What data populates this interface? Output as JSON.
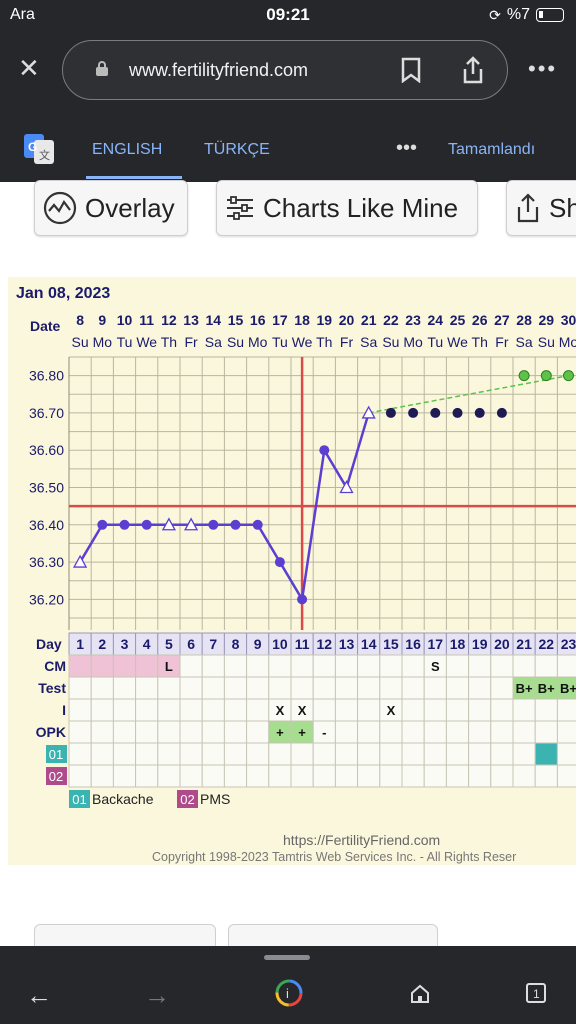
{
  "status": {
    "carrier": "Ara",
    "time": "09:21",
    "battery": "%7"
  },
  "browser": {
    "url": "www.fertilityfriend.com",
    "close_icon": "close-icon",
    "menu_icon": "more-icon"
  },
  "translate": {
    "lang_en": "ENGLISH",
    "lang_tr": "TÜRKÇE",
    "done": "Tamamlandı"
  },
  "buttons": {
    "overlay": "Overlay",
    "charts_like_mine": "Charts Like Mine",
    "share": "Sh"
  },
  "chart": {
    "start_date": "Jan 08, 2023",
    "row_label_date": "Date",
    "row_label_day": "Day",
    "dates": [
      "8",
      "9",
      "10",
      "11",
      "12",
      "13",
      "14",
      "15",
      "16",
      "17",
      "18",
      "19",
      "20",
      "21",
      "22",
      "23",
      "24",
      "25",
      "26",
      "27",
      "28",
      "29",
      "30"
    ],
    "weekdays": [
      "Su",
      "Mo",
      "Tu",
      "We",
      "Th",
      "Fr",
      "Sa",
      "Su",
      "Mo",
      "Tu",
      "We",
      "Th",
      "Fr",
      "Sa",
      "Su",
      "Mo",
      "Tu",
      "We",
      "Th",
      "Fr",
      "Sa",
      "Su",
      "Mo"
    ],
    "days": [
      "1",
      "2",
      "3",
      "4",
      "5",
      "6",
      "7",
      "8",
      "9",
      "10",
      "11",
      "12",
      "13",
      "14",
      "15",
      "16",
      "17",
      "18",
      "19",
      "20",
      "21",
      "22",
      "23"
    ],
    "temp_ticks": [
      "36.80",
      "36.70",
      "36.60",
      "36.50",
      "36.40",
      "36.30",
      "36.20"
    ],
    "row_labels": {
      "cm": "CM",
      "test": "Test",
      "i": "I",
      "opk": "OPK",
      "c01": "01",
      "c02": "02"
    },
    "cm_values": {
      "5": "L",
      "17": "S"
    },
    "test_values": {
      "21": "B+",
      "22": "B+",
      "23": "B+"
    },
    "i_values": {
      "10": "X",
      "11": "X",
      "15": "X"
    },
    "opk_values": {
      "10": "+",
      "11": "+",
      "12": "-"
    },
    "legend": [
      {
        "code": "01",
        "label": "Backache",
        "color": "#3bb3b0"
      },
      {
        "code": "02",
        "label": "PMS",
        "color": "#b04b8b"
      }
    ],
    "footer_url": "https://FertilityFriend.com",
    "copyright": "Copyright 1998-2023 Tamtris Web Services Inc. - All Rights Reser"
  },
  "chart_data": {
    "type": "line",
    "x": [
      1,
      2,
      3,
      4,
      5,
      6,
      7,
      8,
      9,
      10,
      11,
      12,
      13,
      14,
      15,
      16,
      17,
      18,
      19,
      20,
      21,
      22,
      23
    ],
    "ylim": [
      36.15,
      36.85
    ],
    "series": [
      {
        "values": [
          36.3,
          36.4,
          36.4,
          36.4,
          36.4,
          36.4,
          36.4,
          36.4,
          36.4,
          36.3,
          36.2,
          36.6,
          36.5,
          36.7,
          36.7,
          36.7,
          36.7,
          36.7,
          36.7,
          36.7,
          36.8,
          36.8,
          36.8
        ]
      }
    ],
    "open_triangle_days": [
      1,
      5,
      6,
      13,
      14
    ],
    "filled_dark_days": [
      15,
      16,
      17,
      18,
      19,
      20
    ],
    "green_days": [
      21,
      22,
      23
    ],
    "ovulation_day": 11,
    "coverline": 36.45,
    "colors": {
      "line": "#5a3fd0",
      "coverline": "#d94a4a",
      "green": "#5cc24a",
      "dark": "#1e1a55"
    }
  }
}
